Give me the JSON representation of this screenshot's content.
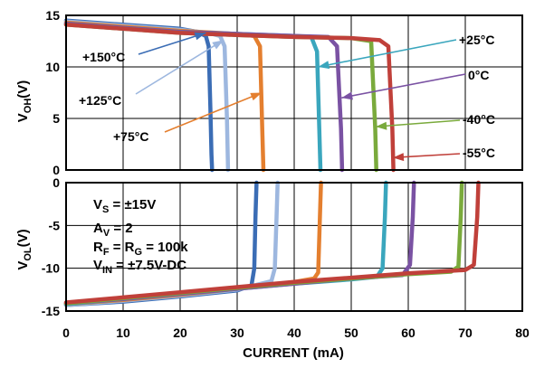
{
  "chart_data": [
    {
      "type": "line",
      "panel": "top",
      "ylabel": "V",
      "ylabel_sub": "OH",
      "ylabel_unit": "(V)",
      "xlim": [
        0,
        80
      ],
      "ylim": [
        0,
        15
      ],
      "yticks": [
        "0",
        "5",
        "10",
        "15"
      ],
      "grid": true,
      "series": [
        {
          "name": "+150°C",
          "color": "#3b6db5",
          "x": [
            0,
            10,
            20,
            23,
            24.5,
            25,
            25.3,
            25.5,
            25.6
          ],
          "y": [
            14.5,
            14.1,
            13.7,
            13.4,
            13.0,
            12.0,
            6.0,
            1.5,
            0
          ]
        },
        {
          "name": "+125°C",
          "color": "#9db7df",
          "x": [
            0,
            10,
            20,
            25,
            27,
            27.8,
            28.2,
            28.4
          ],
          "y": [
            14.4,
            14.0,
            13.6,
            13.3,
            13.0,
            12.0,
            5.0,
            0
          ]
        },
        {
          "name": "+75°C",
          "color": "#e47f2f",
          "x": [
            0,
            10,
            20,
            30,
            33,
            34,
            34.4,
            34.6
          ],
          "y": [
            14.3,
            13.9,
            13.5,
            13.2,
            13.0,
            12.0,
            4.0,
            0
          ]
        },
        {
          "name": "+25°C",
          "color": "#3aa6bd",
          "x": [
            0,
            10,
            20,
            30,
            40,
            43,
            44,
            44.4,
            44.6
          ],
          "y": [
            14.2,
            13.8,
            13.4,
            13.2,
            13.0,
            12.9,
            11.5,
            4.0,
            0
          ]
        },
        {
          "name": "0°C",
          "color": "#7a52a3",
          "x": [
            0,
            10,
            20,
            30,
            40,
            46,
            47.5,
            48.2,
            48.4
          ],
          "y": [
            14.2,
            13.8,
            13.4,
            13.2,
            13.0,
            12.9,
            12.0,
            4.0,
            0
          ]
        },
        {
          "name": "-40°C",
          "color": "#7aaa3c",
          "x": [
            0,
            10,
            20,
            30,
            40,
            50,
            53.5,
            54.2,
            54.4
          ],
          "y": [
            14.1,
            13.7,
            13.3,
            13.1,
            12.9,
            12.8,
            12.5,
            4.0,
            0
          ]
        },
        {
          "name": "-55°C",
          "color": "#c0403a",
          "x": [
            0,
            10,
            20,
            30,
            40,
            50,
            55,
            56.5,
            57.2,
            57.4
          ],
          "y": [
            14.1,
            13.7,
            13.3,
            13.1,
            12.9,
            12.8,
            12.6,
            12.0,
            4.0,
            0
          ]
        }
      ]
    },
    {
      "type": "line",
      "panel": "bottom",
      "xlabel": "CURRENT (mA)",
      "ylabel": "V",
      "ylabel_sub": "OL",
      "ylabel_unit": "(V)",
      "xlim": [
        0,
        80
      ],
      "ylim": [
        -15,
        0
      ],
      "xticks": [
        "0",
        "10",
        "20",
        "30",
        "40",
        "50",
        "60",
        "70",
        "80"
      ],
      "yticks": [
        "0",
        "-5",
        "-10",
        "-15"
      ],
      "grid": true,
      "series": [
        {
          "name": "+150°C",
          "color": "#3b6db5",
          "x": [
            0,
            10,
            20,
            30,
            32.5,
            33,
            33.2,
            33.4
          ],
          "y": [
            -14.3,
            -13.9,
            -13.3,
            -12.6,
            -12.0,
            -10.0,
            -4.0,
            0
          ]
        },
        {
          "name": "+125°C",
          "color": "#9db7df",
          "x": [
            0,
            10,
            20,
            30,
            36,
            36.6,
            36.9,
            37.1
          ],
          "y": [
            -14.3,
            -13.8,
            -13.2,
            -12.5,
            -11.5,
            -10.0,
            -4.0,
            0
          ]
        },
        {
          "name": "+75°C",
          "color": "#e47f2f",
          "x": [
            0,
            10,
            20,
            30,
            40,
            43.5,
            44.2,
            44.5,
            44.7
          ],
          "y": [
            -14.2,
            -13.7,
            -13.1,
            -12.4,
            -11.6,
            -11.2,
            -10.5,
            -4.0,
            0
          ]
        },
        {
          "name": "+25°C",
          "color": "#3aa6bd",
          "x": [
            0,
            10,
            20,
            30,
            40,
            50,
            54.5,
            55.5,
            55.9,
            56.1
          ],
          "y": [
            -14.2,
            -13.6,
            -13.0,
            -12.4,
            -11.8,
            -11.3,
            -11.0,
            -10.0,
            -4.0,
            0
          ]
        },
        {
          "name": "0°C",
          "color": "#7a52a3",
          "x": [
            0,
            10,
            20,
            30,
            40,
            50,
            59,
            60.3,
            60.8,
            61.0
          ],
          "y": [
            -14.1,
            -13.6,
            -13.0,
            -12.4,
            -11.8,
            -11.2,
            -10.8,
            -9.6,
            -4.0,
            0
          ]
        },
        {
          "name": "-40°C",
          "color": "#7aaa3c",
          "x": [
            0,
            10,
            20,
            30,
            40,
            50,
            60,
            67.5,
            68.8,
            69.2,
            69.4
          ],
          "y": [
            -14.1,
            -13.5,
            -12.9,
            -12.3,
            -11.7,
            -11.2,
            -10.7,
            -10.4,
            -9.8,
            -4.0,
            0
          ]
        },
        {
          "name": "-55°C",
          "color": "#c0403a",
          "x": [
            0,
            10,
            20,
            30,
            40,
            50,
            60,
            70,
            71.5,
            72.1,
            72.3
          ],
          "y": [
            -14.0,
            -13.4,
            -12.8,
            -12.2,
            -11.6,
            -11.1,
            -10.6,
            -10.2,
            -9.6,
            -4.0,
            0
          ]
        }
      ]
    }
  ],
  "conditions": [
    {
      "main": "V",
      "sub": "S",
      "rest": " = ±15V"
    },
    {
      "main": "A",
      "sub": "V",
      "rest": " = 2"
    },
    {
      "main": "R",
      "sub": "F",
      "rest": " = R",
      "sub2": "G",
      "rest2": " = 100k"
    },
    {
      "main": "V",
      "sub": "IN",
      "rest": " = ±7.5V-DC"
    }
  ],
  "temperature_labels": [
    {
      "text": "+150°C",
      "series": 0,
      "color": "#3b6db5"
    },
    {
      "text": "+125°C",
      "series": 1,
      "color": "#9db7df"
    },
    {
      "text": "+75°C",
      "series": 2,
      "color": "#e47f2f"
    },
    {
      "text": "+25°C",
      "series": 3,
      "color": "#3aa6bd"
    },
    {
      "text": "0°C",
      "series": 4,
      "color": "#7a52a3"
    },
    {
      "text": "-40°C",
      "series": 5,
      "color": "#7aaa3c"
    },
    {
      "text": "-55°C",
      "series": 6,
      "color": "#c0403a"
    }
  ]
}
